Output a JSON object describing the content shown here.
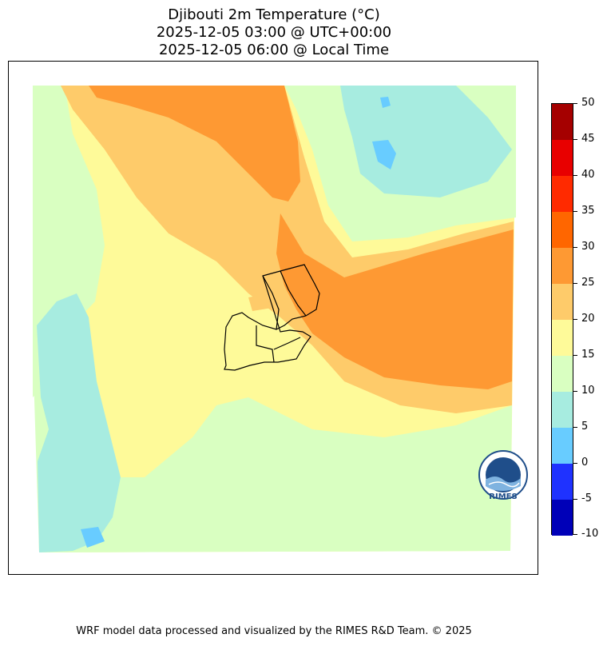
{
  "title": {
    "line1": "Djibouti 2m Temperature (°C)",
    "line2": "2025-12-05 03:00 @ UTC+00:00",
    "line3": "2025-12-05 06:00 @ Local Time"
  },
  "colorbar": {
    "levels": [
      {
        "label": "50"
      },
      {
        "label": "45"
      },
      {
        "label": "40"
      },
      {
        "label": "35"
      },
      {
        "label": "30"
      },
      {
        "label": "25"
      },
      {
        "label": "20"
      },
      {
        "label": "15"
      },
      {
        "label": "10"
      },
      {
        "label": "5"
      },
      {
        "label": "0"
      },
      {
        "label": "-5"
      },
      {
        "label": "-10"
      }
    ],
    "bins": [
      {
        "range": "45-50",
        "color": "#a50000"
      },
      {
        "range": "40-45",
        "color": "#e80000"
      },
      {
        "range": "35-40",
        "color": "#ff2a00"
      },
      {
        "range": "30-35",
        "color": "#ff6600"
      },
      {
        "range": "25-30",
        "color": "#fe9933"
      },
      {
        "range": "20-25",
        "color": "#fecb6a"
      },
      {
        "range": "15-20",
        "color": "#fefa99"
      },
      {
        "range": "10-15",
        "color": "#d9ffc1"
      },
      {
        "range": "5-10",
        "color": "#a7ece0"
      },
      {
        "range": "0-5",
        "color": "#68ccff"
      },
      {
        "range": "-5-0",
        "color": "#1f32ff"
      },
      {
        "range": "-10--5",
        "color": "#0000b8"
      }
    ]
  },
  "logo": {
    "text": "RIMES",
    "icon": "rimes-globe-logo"
  },
  "footer": "WRF model data processed and visualized by the RIMES R&D Team. © 2025"
}
